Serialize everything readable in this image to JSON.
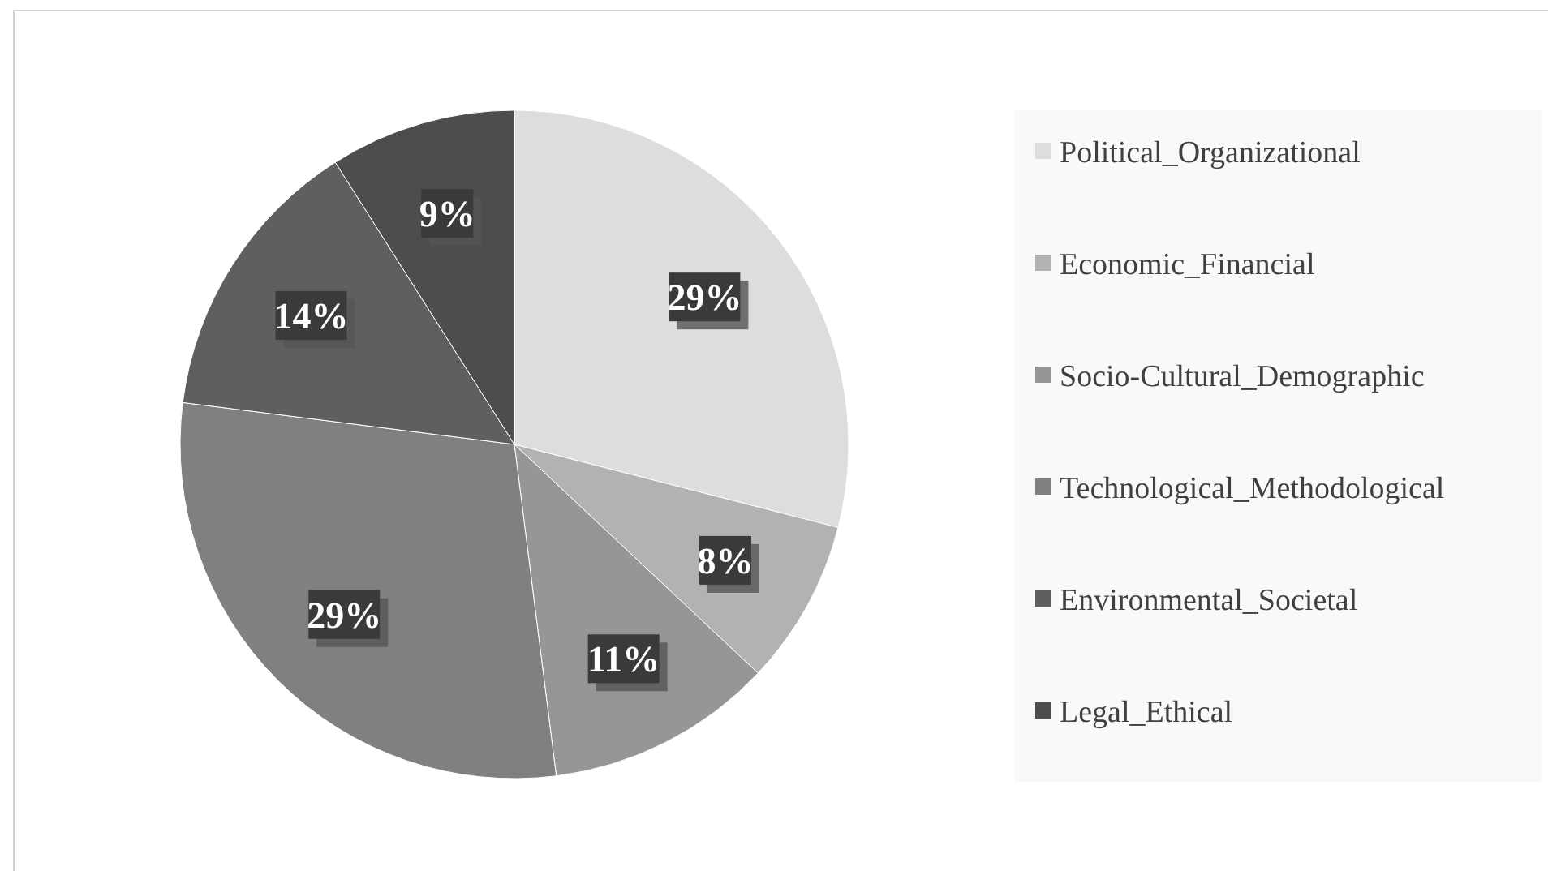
{
  "chart_data": {
    "type": "pie",
    "categories": [
      "Political_Organizational",
      "Economic_Financial",
      "Socio-Cultural_Demographic",
      "Technological_Methodological",
      "Environmental_Societal",
      "Legal_Ethical"
    ],
    "values": [
      29,
      8,
      11,
      29,
      14,
      9
    ],
    "colors": [
      "#dddddd",
      "#b2b2b2",
      "#969696",
      "#808080",
      "#5f5f5f",
      "#4d4d4d"
    ],
    "value_labels": [
      "29%",
      "8%",
      "11%",
      "29%",
      "14%",
      "9%"
    ],
    "legend": "right"
  }
}
